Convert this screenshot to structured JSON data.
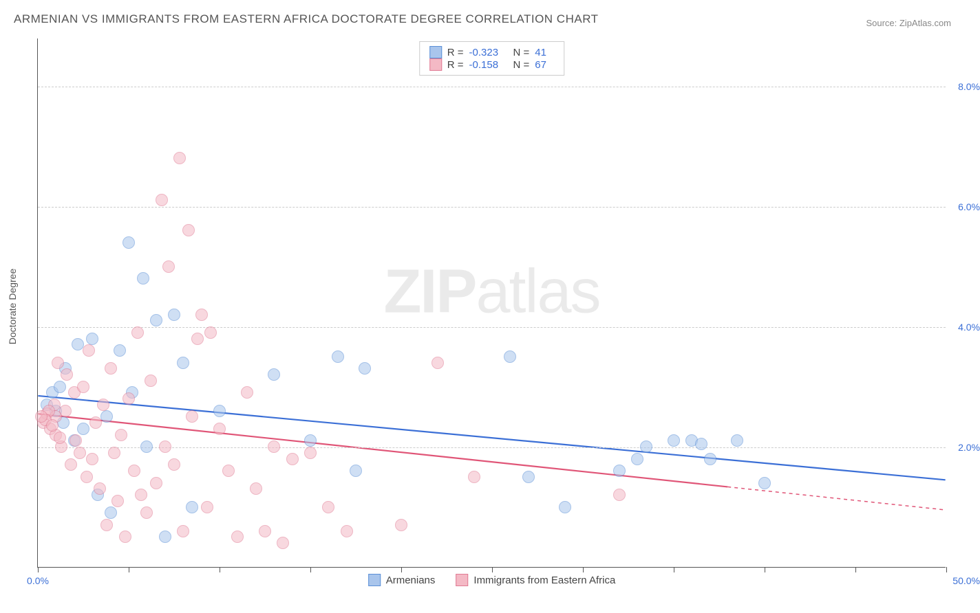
{
  "title": "ARMENIAN VS IMMIGRANTS FROM EASTERN AFRICA DOCTORATE DEGREE CORRELATION CHART",
  "source": "Source: ZipAtlas.com",
  "ylabel": "Doctorate Degree",
  "watermark_bold": "ZIP",
  "watermark_light": "atlas",
  "chart": {
    "type": "scatter",
    "xlim": [
      0,
      50
    ],
    "ylim": [
      0,
      8.8
    ],
    "xticks": [
      0,
      5,
      10,
      15,
      20,
      25,
      30,
      35,
      40,
      45,
      50
    ],
    "xtick_labels": {
      "0": "0.0%",
      "50": "50.0%"
    },
    "ygrid": [
      2,
      4,
      6,
      8
    ],
    "ytick_labels": [
      "2.0%",
      "4.0%",
      "6.0%",
      "8.0%"
    ],
    "background_color": "#ffffff",
    "grid_color": "#cccccc",
    "axis_color": "#555555",
    "tick_label_color": "#3b6fd6",
    "point_radius": 9,
    "point_opacity": 0.55,
    "line_width": 2.2
  },
  "series": [
    {
      "name": "Armenians",
      "color_fill": "#a9c5ec",
      "color_stroke": "#5a8fd6",
      "line_color": "#3b6fd6",
      "R": "-0.323",
      "N": "41",
      "trend": {
        "x1": 0,
        "y1": 2.85,
        "x2": 50,
        "y2": 1.45,
        "solid_until": 50
      },
      "points": [
        [
          0.5,
          2.7
        ],
        [
          0.8,
          2.9
        ],
        [
          1.0,
          2.6
        ],
        [
          1.2,
          3.0
        ],
        [
          1.4,
          2.4
        ],
        [
          1.5,
          3.3
        ],
        [
          2.0,
          2.1
        ],
        [
          2.2,
          3.7
        ],
        [
          2.5,
          2.3
        ],
        [
          3.0,
          3.8
        ],
        [
          3.3,
          1.2
        ],
        [
          3.8,
          2.5
        ],
        [
          4.0,
          0.9
        ],
        [
          4.5,
          3.6
        ],
        [
          5.0,
          5.4
        ],
        [
          5.2,
          2.9
        ],
        [
          5.8,
          4.8
        ],
        [
          6.0,
          2.0
        ],
        [
          6.5,
          4.1
        ],
        [
          7.0,
          0.5
        ],
        [
          7.5,
          4.2
        ],
        [
          8.0,
          3.4
        ],
        [
          8.5,
          1.0
        ],
        [
          10.0,
          2.6
        ],
        [
          13.0,
          3.2
        ],
        [
          15.0,
          2.1
        ],
        [
          16.5,
          3.5
        ],
        [
          17.5,
          1.6
        ],
        [
          18.0,
          3.3
        ],
        [
          26.0,
          3.5
        ],
        [
          27.0,
          1.5
        ],
        [
          29.0,
          1.0
        ],
        [
          32.0,
          1.6
        ],
        [
          33.0,
          1.8
        ],
        [
          35.0,
          2.1
        ],
        [
          36.0,
          2.1
        ],
        [
          37.0,
          1.8
        ],
        [
          38.5,
          2.1
        ],
        [
          40.0,
          1.4
        ],
        [
          36.5,
          2.05
        ],
        [
          33.5,
          2.0
        ]
      ]
    },
    {
      "name": "Immigrants from Eastern Africa",
      "color_fill": "#f4b9c5",
      "color_stroke": "#e07a93",
      "line_color": "#e05577",
      "R": "-0.158",
      "N": "67",
      "trend": {
        "x1": 0,
        "y1": 2.55,
        "x2": 50,
        "y2": 0.95,
        "solid_until": 38
      },
      "points": [
        [
          0.3,
          2.4
        ],
        [
          0.5,
          2.55
        ],
        [
          0.7,
          2.3
        ],
        [
          0.9,
          2.7
        ],
        [
          1.0,
          2.2
        ],
        [
          1.1,
          3.4
        ],
        [
          1.3,
          2.0
        ],
        [
          1.5,
          2.6
        ],
        [
          1.6,
          3.2
        ],
        [
          1.8,
          1.7
        ],
        [
          2.0,
          2.9
        ],
        [
          2.1,
          2.1
        ],
        [
          2.3,
          1.9
        ],
        [
          2.5,
          3.0
        ],
        [
          2.7,
          1.5
        ],
        [
          2.8,
          3.6
        ],
        [
          3.0,
          1.8
        ],
        [
          3.2,
          2.4
        ],
        [
          3.4,
          1.3
        ],
        [
          3.6,
          2.7
        ],
        [
          3.8,
          0.7
        ],
        [
          4.0,
          3.3
        ],
        [
          4.2,
          1.9
        ],
        [
          4.4,
          1.1
        ],
        [
          4.6,
          2.2
        ],
        [
          4.8,
          0.5
        ],
        [
          5.0,
          2.8
        ],
        [
          5.3,
          1.6
        ],
        [
          5.5,
          3.9
        ],
        [
          5.7,
          1.2
        ],
        [
          6.0,
          0.9
        ],
        [
          6.2,
          3.1
        ],
        [
          6.5,
          1.4
        ],
        [
          6.8,
          6.1
        ],
        [
          7.0,
          2.0
        ],
        [
          7.2,
          5.0
        ],
        [
          7.5,
          1.7
        ],
        [
          7.8,
          6.8
        ],
        [
          8.0,
          0.6
        ],
        [
          8.3,
          5.6
        ],
        [
          8.5,
          2.5
        ],
        [
          8.8,
          3.8
        ],
        [
          9.0,
          4.2
        ],
        [
          9.3,
          1.0
        ],
        [
          9.5,
          3.9
        ],
        [
          10.0,
          2.3
        ],
        [
          10.5,
          1.6
        ],
        [
          11.0,
          0.5
        ],
        [
          11.5,
          2.9
        ],
        [
          12.0,
          1.3
        ],
        [
          12.5,
          0.6
        ],
        [
          13.0,
          2.0
        ],
        [
          13.5,
          0.4
        ],
        [
          14.0,
          1.8
        ],
        [
          15.0,
          1.9
        ],
        [
          16.0,
          1.0
        ],
        [
          17.0,
          0.6
        ],
        [
          20.0,
          0.7
        ],
        [
          22.0,
          3.4
        ],
        [
          24.0,
          1.5
        ],
        [
          32.0,
          1.2
        ],
        [
          1.0,
          2.5
        ],
        [
          0.6,
          2.6
        ],
        [
          0.4,
          2.45
        ],
        [
          0.8,
          2.35
        ],
        [
          1.2,
          2.15
        ],
        [
          0.2,
          2.5
        ]
      ]
    }
  ],
  "legend_labels": {
    "R": "R =",
    "N": "N ="
  }
}
